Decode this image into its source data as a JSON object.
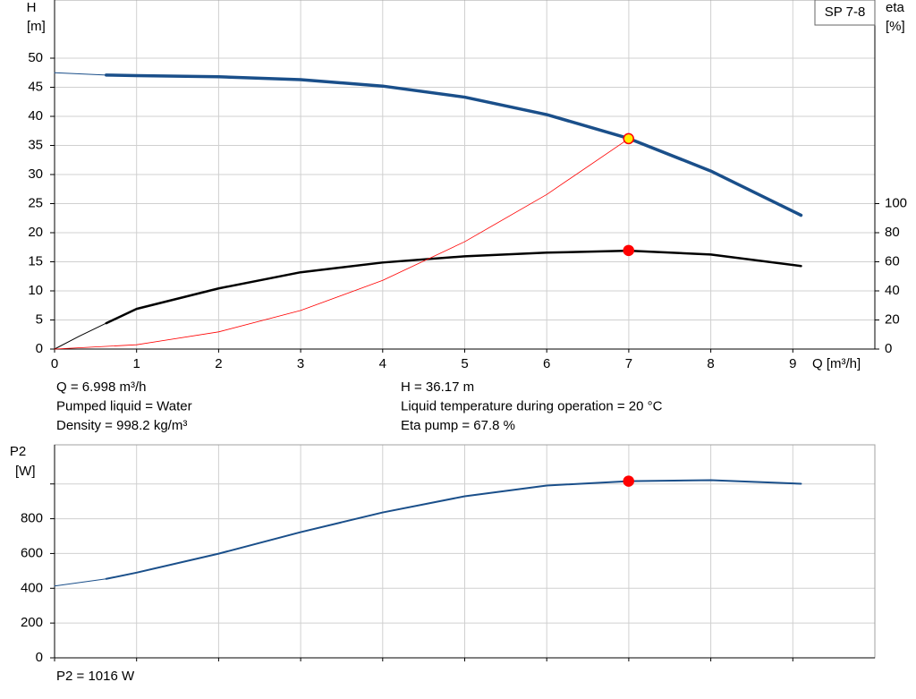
{
  "chart_data": [
    {
      "type": "line",
      "label_box": "SP 7-8",
      "ylabel": "H",
      "yunit": "[m]",
      "y2label": "eta",
      "y2unit": "[%]",
      "xlabel": "Q [m³/h]",
      "xlim": [
        0,
        10
      ],
      "xticks": [
        0,
        1,
        2,
        3,
        4,
        5,
        6,
        7,
        8,
        9
      ],
      "ylim": [
        0,
        60
      ],
      "yticks": [
        0,
        5,
        10,
        15,
        20,
        25,
        30,
        35,
        40,
        45,
        50
      ],
      "y2lim": [
        0,
        240
      ],
      "y2ticks": [
        0,
        20,
        40,
        60,
        80,
        100
      ],
      "grid": true,
      "series": [
        {
          "color": "#1a4f8a",
          "width": 1,
          "x": [
            0,
            0.63
          ],
          "values": [
            47.5,
            47.1
          ]
        },
        {
          "color": "#1a4f8a",
          "width": 3.5,
          "x": [
            0.63,
            1,
            2,
            3,
            4,
            5,
            6,
            7,
            8,
            9.1
          ],
          "values": [
            47.1,
            47.0,
            46.8,
            46.3,
            45.2,
            43.3,
            40.3,
            36.2,
            30.6,
            23.0
          ]
        },
        {
          "color": "#000000",
          "width": 1,
          "axis": "y2",
          "x": [
            0,
            0.3,
            0.63
          ],
          "values": [
            0,
            8.8,
            17.8
          ]
        },
        {
          "color": "#000000",
          "width": 2.5,
          "axis": "y2",
          "x": [
            0.63,
            1,
            2,
            3,
            4,
            5,
            6,
            7,
            8,
            9.1
          ],
          "values": [
            17.8,
            27.6,
            41.7,
            52.8,
            59.5,
            63.8,
            66.3,
            67.6,
            65.0,
            57.1
          ]
        },
        {
          "color": "#ff0000",
          "width": 0.8,
          "x": [
            0,
            1,
            2,
            3,
            4,
            5,
            6,
            7
          ],
          "values": [
            0,
            0.74,
            2.95,
            6.64,
            11.81,
            18.45,
            26.57,
            36.17
          ]
        }
      ],
      "points": [
        {
          "x": 6.998,
          "y": 36.17,
          "color": "#ffee00",
          "edge": "#ff0000"
        },
        {
          "x": 6.998,
          "y": 67.8,
          "axis": "y2",
          "color": "#ff0000",
          "edge": "#ff0000"
        }
      ],
      "info": [
        [
          "Q = 6.998 m³/h",
          "H = 36.17 m"
        ],
        [
          "Pumped liquid = Water",
          "Liquid temperature during operation = 20 °C"
        ],
        [
          "Density = 998.2 kg/m³",
          "Eta pump = 67.8 %"
        ]
      ]
    },
    {
      "type": "line",
      "ylabel": "P2",
      "yunit": "[W]",
      "xlim": [
        0,
        10
      ],
      "xticks": [
        0,
        1,
        2,
        3,
        4,
        5,
        6,
        7,
        8,
        9
      ],
      "xtick_labels": false,
      "ylim": [
        0,
        1225
      ],
      "yticks": [
        0,
        200,
        400,
        600,
        800
      ],
      "yticks_unlabeled": [
        1000
      ],
      "grid": true,
      "series": [
        {
          "color": "#1a4f8a",
          "width": 1,
          "x": [
            0,
            0.63
          ],
          "values": [
            413,
            454
          ]
        },
        {
          "color": "#1a4f8a",
          "width": 2,
          "x": [
            0.63,
            1,
            2,
            3,
            4,
            5,
            6,
            7,
            8,
            9.1
          ],
          "values": [
            454,
            490,
            599,
            723,
            836,
            929,
            991,
            1016,
            1022,
            1001
          ]
        }
      ],
      "points": [
        {
          "x": 6.998,
          "y": 1016,
          "color": "#ff0000",
          "edge": "#ff0000"
        }
      ],
      "info": [
        [
          "P2 = 1016 W"
        ]
      ]
    }
  ]
}
